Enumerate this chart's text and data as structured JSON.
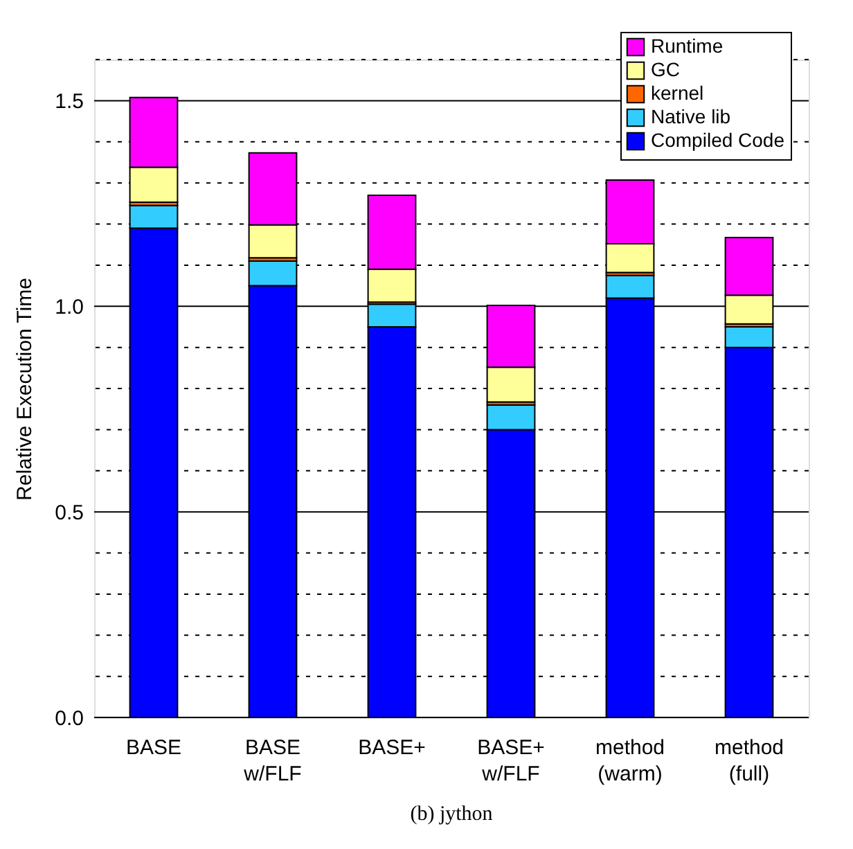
{
  "chart_data": {
    "type": "bar",
    "stacked": true,
    "ylabel": "Relative Execution Time",
    "categories": [
      "BASE",
      "BASE\nw/FLF",
      "BASE+",
      "BASE+\nw/FLF",
      "method\n(warm)",
      "method\n(full)"
    ],
    "series": [
      {
        "name": "Compiled Code",
        "color": "#0000ff",
        "values": [
          1.19,
          1.05,
          0.95,
          0.7,
          1.02,
          0.9
        ]
      },
      {
        "name": "Native lib",
        "color": "#33ccff",
        "values": [
          0.055,
          0.06,
          0.055,
          0.06,
          0.055,
          0.05
        ]
      },
      {
        "name": "kernel",
        "color": "#ff6600",
        "values": [
          0.008,
          0.008,
          0.005,
          0.007,
          0.007,
          0.007
        ]
      },
      {
        "name": "GC",
        "color": "#ffff99",
        "values": [
          0.085,
          0.08,
          0.08,
          0.085,
          0.07,
          0.07
        ]
      },
      {
        "name": "Runtime",
        "color": "#ff00ff",
        "values": [
          0.17,
          0.175,
          0.18,
          0.15,
          0.155,
          0.14
        ]
      }
    ],
    "ylim": [
      0,
      1.6
    ],
    "yticks": [
      {
        "value": 0,
        "label": "0.0"
      },
      {
        "value": 0.1,
        "label": null
      },
      {
        "value": 0.2,
        "label": null
      },
      {
        "value": 0.3,
        "label": null
      },
      {
        "value": 0.4,
        "label": null
      },
      {
        "value": 0.5,
        "label": "0.5"
      },
      {
        "value": 0.6,
        "label": null
      },
      {
        "value": 0.7,
        "label": null
      },
      {
        "value": 0.8,
        "label": null
      },
      {
        "value": 0.9,
        "label": null
      },
      {
        "value": 1.0,
        "label": "1.0"
      },
      {
        "value": 1.1,
        "label": null
      },
      {
        "value": 1.2,
        "label": null
      },
      {
        "value": 1.3,
        "label": null
      },
      {
        "value": 1.4,
        "label": null
      },
      {
        "value": 1.5,
        "label": "1.5"
      },
      {
        "value": 1.6,
        "label": null
      }
    ],
    "grid": "y",
    "legend": "top right",
    "annotations": [
      "(b) jython"
    ]
  }
}
